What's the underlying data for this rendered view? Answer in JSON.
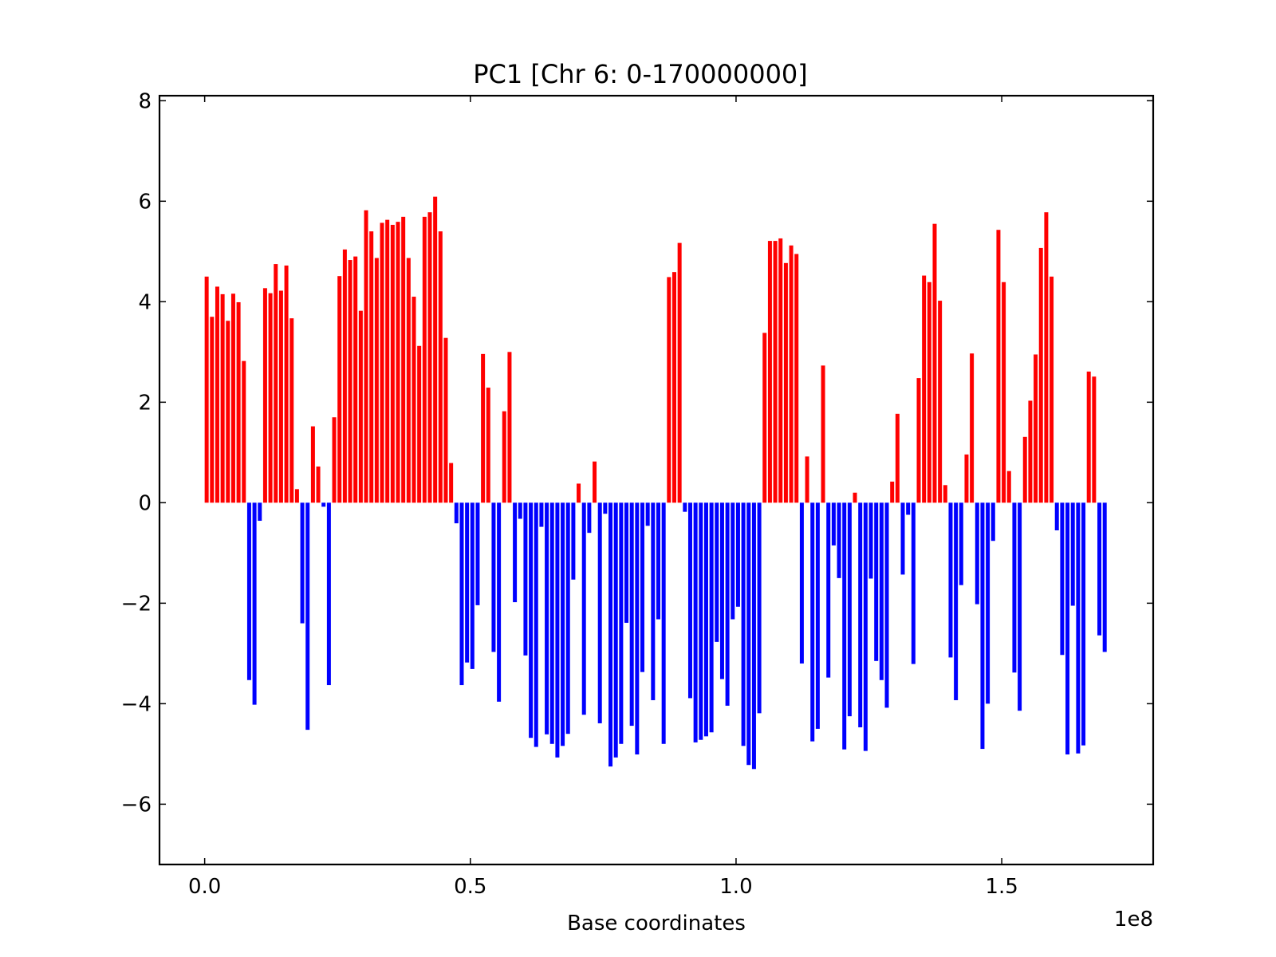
{
  "chart_data": {
    "type": "bar",
    "title": "PC1 [Chr 6: 0-170000000]",
    "xlabel": "Base coordinates",
    "ylabel": "",
    "x_offset_label": "1e8",
    "xlim": [
      -8500000,
      178500000
    ],
    "ylim": [
      -7.2,
      8.1
    ],
    "x_ticks": [
      0,
      50000000,
      100000000,
      150000000
    ],
    "x_tick_labels": [
      "0.0",
      "0.5",
      "1.0",
      "1.5"
    ],
    "y_ticks": [
      -6,
      -4,
      -2,
      0,
      2,
      4,
      6,
      8
    ],
    "y_tick_labels": [
      "−6",
      "−4",
      "−2",
      "0",
      "2",
      "4",
      "6",
      "8"
    ],
    "bin_size": 1000000,
    "bar_width_bins": 0.75,
    "positive_color": "#ff0000",
    "negative_color": "#0000ff",
    "grid": false,
    "legend": "none",
    "series": [
      {
        "values": [
          4.5,
          3.7,
          4.3,
          4.15,
          3.62,
          4.16,
          3.99,
          2.82,
          -3.53,
          -4.02,
          -0.36,
          4.27,
          4.17,
          4.75,
          4.22,
          4.72,
          3.67,
          0.27,
          -2.4,
          -4.52,
          1.52,
          0.72,
          -0.08,
          -3.63,
          1.7,
          4.51,
          5.04,
          4.83,
          4.9,
          3.82,
          5.82,
          5.4,
          4.87,
          5.57,
          5.63,
          5.53,
          5.59,
          5.69,
          4.87,
          4.1,
          3.12,
          5.69,
          5.78,
          6.09,
          5.4,
          3.28,
          0.79,
          -0.41,
          -3.63,
          -3.18,
          -3.31,
          -2.04,
          2.96,
          2.29,
          -2.97,
          -3.96,
          1.82,
          3.0,
          -1.98,
          -0.32,
          -3.04,
          -4.68,
          -4.86,
          -0.48,
          -4.61,
          -4.8,
          -5.07,
          -4.84,
          -4.6,
          -1.53,
          0.38,
          -4.22,
          -0.6,
          0.82,
          -4.39,
          -0.22,
          -5.25,
          -5.07,
          -4.8,
          -2.39,
          -4.44,
          -5.01,
          -3.37,
          -0.46,
          -3.93,
          -2.32,
          -4.8,
          4.49,
          4.59,
          5.17,
          -0.18,
          -3.89,
          -4.77,
          -4.72,
          -4.65,
          -4.57,
          -2.77,
          -3.51,
          -4.04,
          -2.32,
          -2.07,
          -4.84,
          -5.22,
          -5.3,
          -4.19,
          3.38,
          5.21,
          5.21,
          5.26,
          4.77,
          5.12,
          4.95,
          -3.2,
          0.92,
          -4.75,
          -4.5,
          2.73,
          -3.48,
          -0.85,
          -1.5,
          -4.91,
          -4.25,
          0.2,
          -4.47,
          -4.94,
          -1.51,
          -3.15,
          -3.53,
          -4.08,
          0.42,
          1.77,
          -1.43,
          -0.24,
          -3.21,
          2.48,
          4.52,
          4.39,
          5.55,
          4.02,
          0.35,
          -3.08,
          -3.93,
          -1.64,
          0.96,
          2.97,
          -2.02,
          -4.9,
          -4.0,
          -0.76,
          5.43,
          4.39,
          0.63,
          -3.38,
          -4.14,
          1.31,
          2.03,
          2.95,
          5.07,
          5.78,
          4.5,
          -0.55,
          -3.03,
          -5.01,
          -2.05,
          -4.99,
          -4.83,
          2.61,
          2.51,
          -2.64,
          -2.97
        ]
      }
    ]
  }
}
